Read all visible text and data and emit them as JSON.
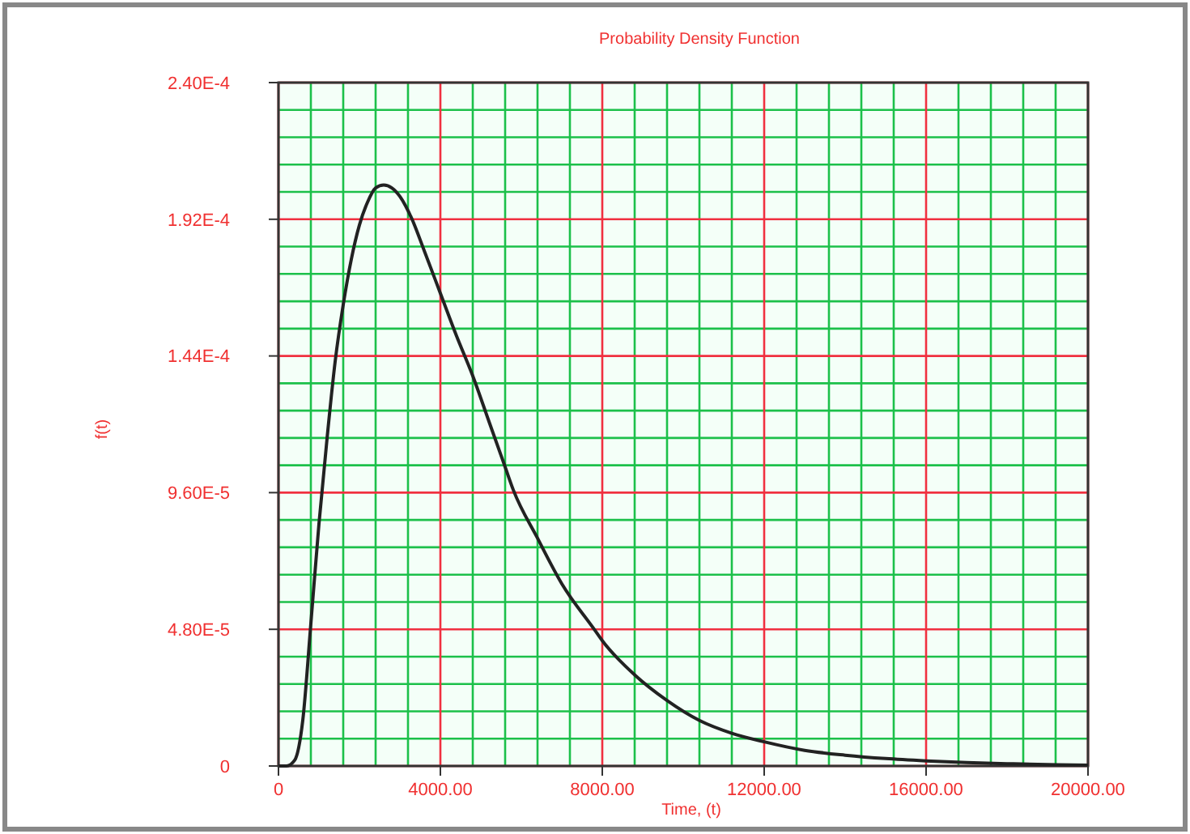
{
  "chart_data": {
    "type": "line",
    "title": "Probability Density Function",
    "xlabel": "Time, (t)",
    "ylabel": "f(t)",
    "grid": true,
    "marker": "none",
    "line_style": "solid",
    "xlim": [
      0,
      20000
    ],
    "ylim": [
      0,
      0.00024
    ],
    "xticks": [
      0,
      {
        "value": 800,
        "label": null
      },
      {
        "value": 1600,
        "label": null
      },
      {
        "value": 2400,
        "label": null
      },
      {
        "value": 3200,
        "label": null
      },
      {
        "value": 4000,
        "label": "4000.00"
      },
      {
        "value": 4800,
        "label": null
      },
      {
        "value": 5600,
        "label": null
      },
      {
        "value": 6400,
        "label": null
      },
      {
        "value": 7200,
        "label": null
      },
      {
        "value": 8000,
        "label": "8000.00"
      },
      {
        "value": 8800,
        "label": null
      },
      {
        "value": 9600,
        "label": null
      },
      {
        "value": 10400,
        "label": null
      },
      {
        "value": 11200,
        "label": null
      },
      {
        "value": 12000,
        "label": "12000.00"
      },
      {
        "value": 12800,
        "label": null
      },
      {
        "value": 13600,
        "label": null
      },
      {
        "value": 14400,
        "label": null
      },
      {
        "value": 15200,
        "label": null
      },
      {
        "value": 16000,
        "label": "16000.00"
      },
      {
        "value": 16800,
        "label": null
      },
      {
        "value": 17600,
        "label": null
      },
      {
        "value": 18400,
        "label": null
      },
      {
        "value": 19200,
        "label": null
      },
      {
        "value": 20000,
        "label": "20000.00"
      }
    ],
    "yticks": [
      0,
      {
        "value": 9.6e-06,
        "label": null
      },
      {
        "value": 1.92e-05,
        "label": null
      },
      {
        "value": 2.88e-05,
        "label": null
      },
      {
        "value": 3.84e-05,
        "label": null
      },
      {
        "value": 4.8e-05,
        "label": "4.80E-5"
      },
      {
        "value": 5.76e-05,
        "label": null
      },
      {
        "value": 6.72e-05,
        "label": null
      },
      {
        "value": 7.68e-05,
        "label": null
      },
      {
        "value": 8.64e-05,
        "label": null
      },
      {
        "value": 9.6e-05,
        "label": "9.60E-5"
      },
      {
        "value": 0.0001056,
        "label": null
      },
      {
        "value": 0.0001152,
        "label": null
      },
      {
        "value": 0.0001248,
        "label": null
      },
      {
        "value": 0.0001344,
        "label": null
      },
      {
        "value": 0.000144,
        "label": "1.44E-4"
      },
      {
        "value": 0.0001536,
        "label": null
      },
      {
        "value": 0.0001632,
        "label": null
      },
      {
        "value": 0.0001728,
        "label": null
      },
      {
        "value": 0.0001824,
        "label": null
      },
      {
        "value": 0.000192,
        "label": "1.92E-4"
      },
      {
        "value": 0.0002016,
        "label": null
      },
      {
        "value": 0.0002112,
        "label": null
      },
      {
        "value": 0.0002208,
        "label": null
      },
      {
        "value": 0.0002304,
        "label": null
      },
      {
        "value": 0.00024,
        "label": "2.40E-4"
      }
    ],
    "series": [
      {
        "color": "#222222",
        "x": [
          0,
          200,
          400,
          600,
          800,
          1000,
          1200,
          1400,
          1600,
          1800,
          2000,
          2200,
          2400,
          2600,
          2800,
          3000,
          3300,
          3600,
          4000,
          4400,
          4800,
          5200,
          5600,
          5800,
          6400,
          7000,
          7800,
          8000,
          8800,
          9600,
          10400,
          11200,
          12000,
          13000,
          14000,
          15000,
          16000,
          17000,
          18000,
          19000,
          20000
        ],
        "values": [
          0,
          0,
          2e-06,
          1.6e-05,
          5e-05,
          8.5e-05,
          0.000115,
          0.000142,
          0.000162,
          0.000178,
          0.00019,
          0.000198,
          0.000203,
          0.000204,
          0.000203,
          0.0002,
          0.000192,
          0.000181,
          0.000166,
          0.000151,
          0.000137,
          0.000121,
          0.000105,
          9.7e-05,
          8e-05,
          6.4e-05,
          4.8e-05,
          4.4e-05,
          3.2e-05,
          2.3e-05,
          1.6e-05,
          1.15e-05,
          8.5e-06,
          5.5e-06,
          3.8e-06,
          2.6e-06,
          1.8e-06,
          1.2e-06,
          8e-07,
          5e-07,
          3e-07
        ]
      }
    ]
  }
}
